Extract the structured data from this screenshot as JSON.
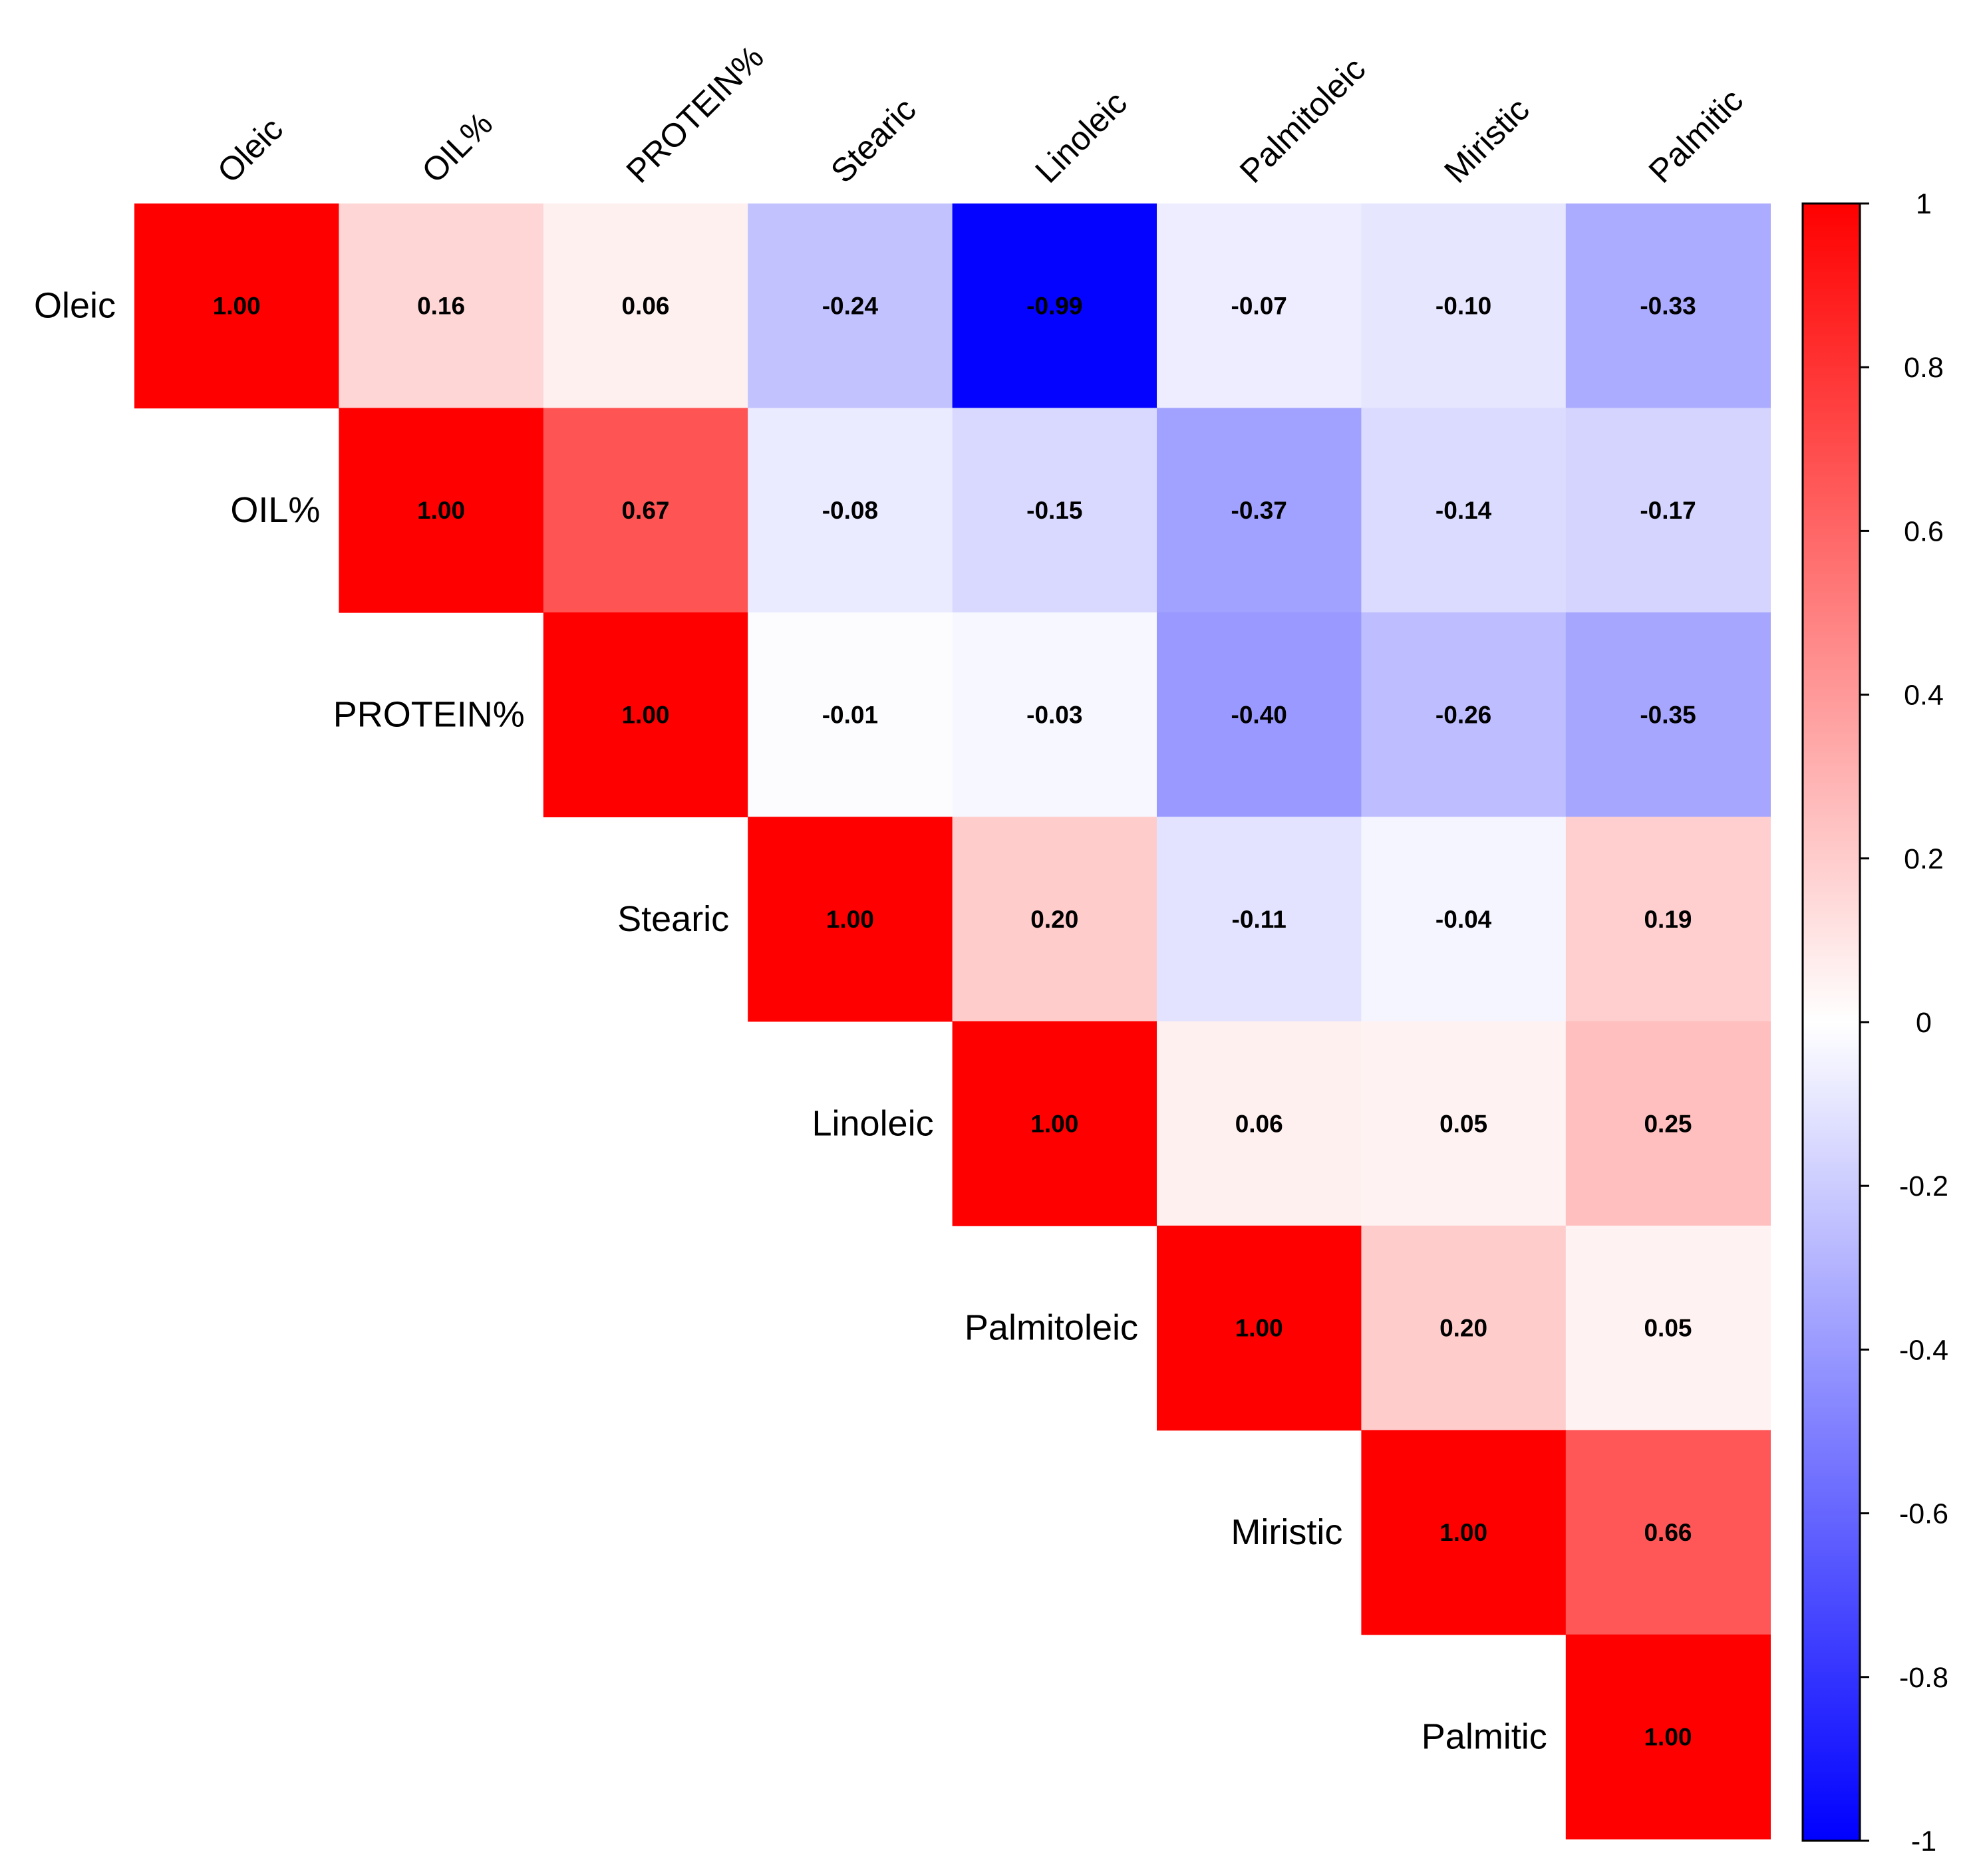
{
  "chart_data": {
    "type": "heatmap",
    "title": "",
    "variables": [
      "Oleic",
      "OIL%",
      "PROTEIN%",
      "Stearic",
      "Linoleic",
      "Palmitoleic",
      "Miristic",
      "Palmitic"
    ],
    "matrix_upper": [
      [
        1.0,
        0.16,
        0.06,
        -0.24,
        -0.99,
        -0.07,
        -0.1,
        -0.33
      ],
      [
        null,
        1.0,
        0.67,
        -0.08,
        -0.15,
        -0.37,
        -0.14,
        -0.17
      ],
      [
        null,
        null,
        1.0,
        -0.01,
        -0.03,
        -0.4,
        -0.26,
        -0.35
      ],
      [
        null,
        null,
        null,
        1.0,
        0.2,
        -0.11,
        -0.04,
        0.19
      ],
      [
        null,
        null,
        null,
        null,
        1.0,
        0.06,
        0.05,
        0.25
      ],
      [
        null,
        null,
        null,
        null,
        null,
        1.0,
        0.2,
        0.05
      ],
      [
        null,
        null,
        null,
        null,
        null,
        null,
        1.0,
        0.66
      ],
      [
        null,
        null,
        null,
        null,
        null,
        null,
        null,
        1.0
      ]
    ],
    "colorbar": {
      "range": [
        -1,
        1
      ],
      "ticks": [
        1,
        0.8,
        0.6,
        0.4,
        0.2,
        0,
        -0.2,
        -0.4,
        -0.6,
        -0.8,
        -1
      ],
      "tick_labels": [
        "1",
        "0.8",
        "0.6",
        "0.4",
        "0.2",
        "0",
        "-0.2",
        "-0.4",
        "-0.6",
        "-0.8",
        "-1"
      ],
      "colors": {
        "low": "#0000FF",
        "mid": "#FFFFFF",
        "high": "#FF0000"
      }
    }
  }
}
